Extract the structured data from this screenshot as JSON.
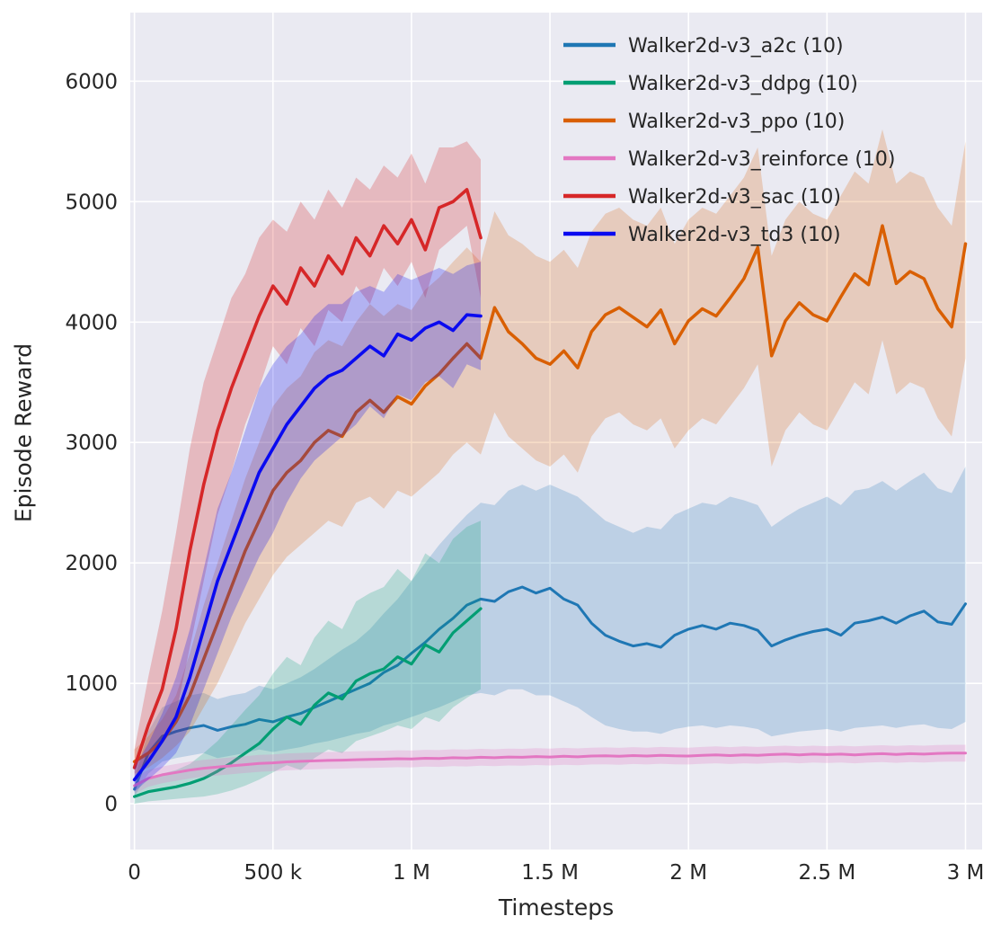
{
  "figure": {
    "background": "#ffffff",
    "plot_background": "#eaeaf2",
    "grid_color": "#ffffff",
    "tick_color": "#262626"
  },
  "chart_data": {
    "type": "line",
    "title": "",
    "xlabel": "Timesteps",
    "ylabel": "Episode Reward",
    "xlim": [
      -15000,
      3060000
    ],
    "ylim": [
      -380,
      6570
    ],
    "grid": true,
    "legend_position": "upper right",
    "x_ticks": [
      {
        "value": 0,
        "label": "0"
      },
      {
        "value": 500000,
        "label": "500 k"
      },
      {
        "value": 1000000,
        "label": "1 M"
      },
      {
        "value": 1500000,
        "label": "1.5 M"
      },
      {
        "value": 2000000,
        "label": "2 M"
      },
      {
        "value": 2500000,
        "label": "2.5 M"
      },
      {
        "value": 3000000,
        "label": "3 M"
      }
    ],
    "y_ticks": [
      {
        "value": 0,
        "label": "0"
      },
      {
        "value": 1000,
        "label": "1000"
      },
      {
        "value": 2000,
        "label": "2000"
      },
      {
        "value": 3000,
        "label": "3000"
      },
      {
        "value": 4000,
        "label": "4000"
      },
      {
        "value": 5000,
        "label": "5000"
      },
      {
        "value": 6000,
        "label": "6000"
      }
    ],
    "series": [
      {
        "key": "a2c",
        "name": "Walker2d-v3_a2c (10)",
        "color": "#1f77b4",
        "line_width": 3,
        "band_alpha": 0.22,
        "x_start": 0,
        "x_step": 50000,
        "y": [
          120,
          420,
          560,
          600,
          630,
          650,
          610,
          640,
          660,
          700,
          680,
          720,
          750,
          800,
          850,
          900,
          950,
          1000,
          1090,
          1150,
          1250,
          1340,
          1450,
          1540,
          1650,
          1700,
          1680,
          1760,
          1800,
          1750,
          1790,
          1700,
          1650,
          1500,
          1400,
          1350,
          1310,
          1330,
          1300,
          1400,
          1450,
          1480,
          1450,
          1500,
          1480,
          1440,
          1310,
          1360,
          1400,
          1430,
          1450,
          1400,
          1500,
          1520,
          1550,
          1500,
          1560,
          1600,
          1510,
          1490,
          1660
        ],
        "lo": [
          60,
          250,
          350,
          380,
          400,
          420,
          380,
          400,
          420,
          450,
          430,
          450,
          470,
          500,
          520,
          550,
          580,
          600,
          650,
          680,
          720,
          760,
          800,
          850,
          900,
          920,
          900,
          950,
          950,
          900,
          900,
          850,
          800,
          720,
          650,
          620,
          600,
          600,
          580,
          620,
          640,
          650,
          630,
          650,
          640,
          620,
          560,
          580,
          600,
          610,
          620,
          600,
          630,
          640,
          650,
          630,
          650,
          660,
          630,
          620,
          680
        ],
        "hi": [
          200,
          600,
          800,
          850,
          900,
          920,
          870,
          900,
          920,
          980,
          950,
          1000,
          1050,
          1120,
          1200,
          1280,
          1350,
          1450,
          1580,
          1700,
          1850,
          2000,
          2150,
          2280,
          2400,
          2500,
          2480,
          2600,
          2650,
          2600,
          2650,
          2600,
          2550,
          2450,
          2350,
          2300,
          2250,
          2300,
          2280,
          2400,
          2450,
          2500,
          2480,
          2550,
          2520,
          2480,
          2300,
          2380,
          2450,
          2500,
          2550,
          2480,
          2600,
          2620,
          2680,
          2600,
          2680,
          2750,
          2620,
          2580,
          2800
        ]
      },
      {
        "key": "ddpg",
        "name": "Walker2d-v3_ddpg (10)",
        "color": "#029e73",
        "line_width": 3.2,
        "band_alpha": 0.22,
        "x_start": 0,
        "x_step": 50000,
        "y": [
          60,
          100,
          120,
          140,
          170,
          210,
          270,
          340,
          420,
          500,
          620,
          720,
          660,
          820,
          920,
          870,
          1020,
          1080,
          1120,
          1220,
          1160,
          1320,
          1260,
          1420,
          1520,
          1620
        ],
        "lo": [
          0,
          20,
          30,
          40,
          50,
          60,
          80,
          110,
          150,
          200,
          260,
          320,
          280,
          380,
          450,
          420,
          520,
          560,
          600,
          650,
          620,
          720,
          680,
          800,
          880,
          950
        ],
        "hi": [
          150,
          200,
          250,
          280,
          330,
          420,
          520,
          650,
          780,
          900,
          1080,
          1220,
          1150,
          1380,
          1520,
          1450,
          1680,
          1750,
          1800,
          1950,
          1850,
          2080,
          2000,
          2200,
          2300,
          2350
        ]
      },
      {
        "key": "ppo",
        "name": "Walker2d-v3_ppo (10)",
        "color": "#d95f02",
        "line_width": 3.5,
        "band_alpha": 0.22,
        "x_start": 0,
        "x_step": 50000,
        "y": [
          350,
          420,
          520,
          680,
          900,
          1200,
          1500,
          1800,
          2100,
          2350,
          2600,
          2750,
          2850,
          3000,
          3100,
          3050,
          3250,
          3350,
          3250,
          3380,
          3320,
          3470,
          3570,
          3700,
          3820,
          3700,
          4120,
          3920,
          3820,
          3700,
          3650,
          3760,
          3620,
          3920,
          4060,
          4120,
          4040,
          3960,
          4100,
          3820,
          4010,
          4110,
          4050,
          4200,
          4360,
          4620,
          3720,
          4010,
          4160,
          4060,
          4010,
          4210,
          4400,
          4310,
          4800,
          4320,
          4420,
          4360,
          4110,
          3960,
          4650
        ],
        "lo": [
          250,
          300,
          380,
          480,
          600,
          800,
          1000,
          1250,
          1500,
          1700,
          1900,
          2050,
          2150,
          2250,
          2350,
          2300,
          2500,
          2550,
          2450,
          2600,
          2550,
          2650,
          2750,
          2900,
          3000,
          2900,
          3250,
          3050,
          2950,
          2850,
          2800,
          2900,
          2750,
          3050,
          3200,
          3250,
          3150,
          3100,
          3200,
          2950,
          3100,
          3200,
          3150,
          3300,
          3450,
          3650,
          2800,
          3100,
          3250,
          3150,
          3100,
          3300,
          3500,
          3400,
          3850,
          3400,
          3500,
          3450,
          3200,
          3050,
          3700
        ],
        "hi": [
          450,
          560,
          700,
          900,
          1250,
          1650,
          2000,
          2350,
          2700,
          3000,
          3300,
          3450,
          3550,
          3750,
          3850,
          3800,
          4000,
          4150,
          4050,
          4150,
          4100,
          4270,
          4370,
          4500,
          4620,
          4500,
          4920,
          4720,
          4650,
          4550,
          4500,
          4600,
          4450,
          4750,
          4900,
          4950,
          4850,
          4800,
          4950,
          4650,
          4850,
          4950,
          4900,
          5050,
          5200,
          5450,
          4550,
          4850,
          5000,
          4900,
          4850,
          5050,
          5250,
          5150,
          5600,
          5150,
          5250,
          5200,
          4950,
          4800,
          5500
        ]
      },
      {
        "key": "reinforce",
        "name": "Walker2d-v3_reinforce (10)",
        "color": "#e377c2",
        "line_width": 3,
        "band_alpha": 0.25,
        "x_start": 0,
        "x_step": 50000,
        "y": [
          150,
          210,
          240,
          260,
          280,
          295,
          305,
          315,
          325,
          335,
          340,
          348,
          352,
          356,
          360,
          362,
          366,
          368,
          370,
          374,
          372,
          378,
          376,
          382,
          380,
          386,
          382,
          388,
          386,
          392,
          388,
          394,
          390,
          396,
          398,
          394,
          400,
          396,
          402,
          398,
          396,
          402,
          406,
          400,
          406,
          402,
          408,
          412,
          406,
          412,
          408,
          412,
          406,
          412,
          416,
          410,
          416,
          412,
          418,
          420,
          420
        ],
        "lo": [
          80,
          140,
          170,
          190,
          210,
          225,
          235,
          245,
          255,
          265,
          270,
          278,
          282,
          286,
          290,
          292,
          296,
          298,
          300,
          304,
          302,
          308,
          306,
          312,
          310,
          316,
          312,
          318,
          316,
          322,
          318,
          324,
          320,
          326,
          328,
          324,
          330,
          326,
          332,
          328,
          326,
          332,
          336,
          330,
          336,
          332,
          338,
          342,
          336,
          342,
          338,
          342,
          336,
          342,
          346,
          340,
          346,
          342,
          348,
          350,
          350
        ],
        "hi": [
          220,
          280,
          310,
          330,
          350,
          365,
          375,
          385,
          395,
          405,
          410,
          418,
          422,
          426,
          430,
          432,
          436,
          438,
          440,
          444,
          442,
          448,
          446,
          452,
          450,
          456,
          452,
          458,
          456,
          462,
          458,
          464,
          460,
          466,
          468,
          464,
          470,
          466,
          472,
          468,
          466,
          472,
          476,
          470,
          476,
          472,
          478,
          482,
          476,
          482,
          478,
          482,
          476,
          482,
          486,
          480,
          486,
          482,
          488,
          490,
          490
        ]
      },
      {
        "key": "sac",
        "name": "Walker2d-v3_sac (10)",
        "color": "#d62728",
        "line_width": 3.6,
        "band_alpha": 0.25,
        "x_start": 0,
        "x_step": 50000,
        "y": [
          300,
          650,
          950,
          1450,
          2100,
          2650,
          3100,
          3450,
          3750,
          4050,
          4300,
          4150,
          4450,
          4300,
          4550,
          4400,
          4700,
          4550,
          4800,
          4650,
          4850,
          4600,
          4950,
          5000,
          5100,
          4700
        ],
        "lo": [
          200,
          350,
          500,
          750,
          1300,
          1850,
          2400,
          2750,
          3150,
          3450,
          3800,
          3650,
          3950,
          3800,
          4100,
          4000,
          4300,
          4150,
          4450,
          4300,
          4500,
          4200,
          4600,
          4700,
          4800,
          4200
        ],
        "hi": [
          450,
          1050,
          1600,
          2250,
          2950,
          3500,
          3850,
          4200,
          4400,
          4700,
          4850,
          4750,
          5000,
          4850,
          5100,
          4950,
          5200,
          5100,
          5300,
          5200,
          5400,
          5150,
          5450,
          5450,
          5500,
          5350
        ]
      },
      {
        "key": "td3",
        "name": "Walker2d-v3_td3 (10)",
        "color": "#0a0af0",
        "line_width": 3.6,
        "band_alpha": 0.25,
        "x_start": 0,
        "x_step": 50000,
        "y": [
          200,
          350,
          520,
          720,
          1050,
          1450,
          1850,
          2150,
          2450,
          2750,
          2950,
          3150,
          3300,
          3450,
          3550,
          3600,
          3700,
          3800,
          3720,
          3900,
          3850,
          3950,
          4000,
          3930,
          4060,
          4050
        ],
        "lo": [
          100,
          200,
          300,
          420,
          650,
          950,
          1250,
          1550,
          1800,
          2050,
          2250,
          2500,
          2700,
          2850,
          2950,
          3050,
          3150,
          3300,
          3200,
          3400,
          3350,
          3500,
          3550,
          3450,
          3650,
          3600
        ],
        "hi": [
          300,
          500,
          750,
          1050,
          1450,
          1950,
          2450,
          2750,
          3100,
          3450,
          3650,
          3800,
          3900,
          4050,
          4150,
          4150,
          4250,
          4300,
          4250,
          4400,
          4350,
          4400,
          4450,
          4400,
          4470,
          4500
        ]
      }
    ]
  }
}
